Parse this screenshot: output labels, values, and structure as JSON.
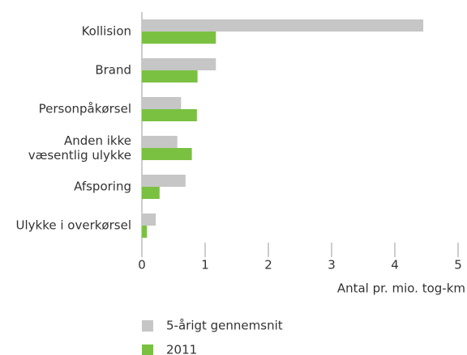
{
  "chart_data": {
    "type": "hbar",
    "categories": [
      "Kollision",
      "Brand",
      "Personpåkørsel",
      "Anden ikke\nvæsentlig ulykke",
      "Afsporing",
      "Ulykke i overkørsel"
    ],
    "series": [
      {
        "name": "5-årigt gennemsnit",
        "color": "#c6c6c6",
        "values": [
          4.45,
          1.17,
          0.62,
          0.56,
          0.69,
          0.22
        ]
      },
      {
        "name": "2011",
        "color": "#7ac142",
        "values": [
          1.17,
          0.88,
          0.87,
          0.79,
          0.28,
          0.08
        ]
      }
    ],
    "xlabel": "Antal pr. mio. tog-km",
    "xlim": [
      0,
      5
    ],
    "xticks": [
      0,
      1,
      2,
      3,
      4,
      5
    ],
    "legend": "bottom"
  }
}
